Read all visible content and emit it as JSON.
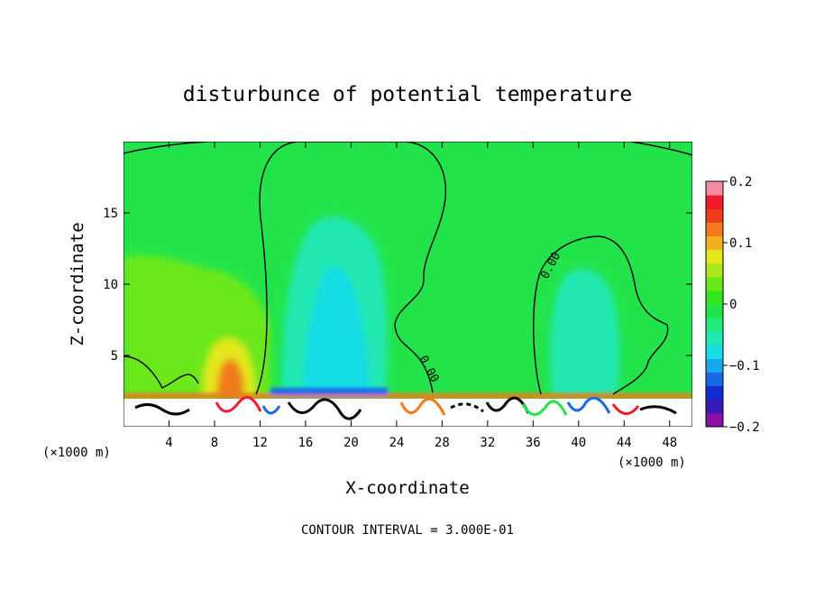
{
  "chart_data": {
    "type": "heatmap",
    "title": "disturbunce of potential temperature",
    "xlabel": "X-coordinate",
    "ylabel": "Z-coordinate",
    "x_unit": "(×1000 m)",
    "x_unit_right": "(×1000 m)",
    "xlim": [
      0,
      50
    ],
    "ylim": [
      0,
      20
    ],
    "x_ticks": [
      4,
      8,
      12,
      16,
      20,
      24,
      28,
      32,
      36,
      40,
      44,
      48
    ],
    "y_ticks": [
      5,
      10,
      15
    ],
    "colorbar": {
      "range": [
        -0.2,
        0.2
      ],
      "labels": [
        "0.2",
        "0.1",
        "0",
        "−0.1",
        "−0.2"
      ],
      "label_values": [
        0.2,
        0.1,
        0,
        -0.1,
        -0.2
      ],
      "colors": [
        "#8a0ea6",
        "#3a17b5",
        "#0f2ad0",
        "#1769e8",
        "#19a8f0",
        "#18dce6",
        "#20e8b2",
        "#22ea7c",
        "#22e44a",
        "#33e61f",
        "#6ae81c",
        "#a8e81c",
        "#e2e81a",
        "#f2b01e",
        "#f27a1a",
        "#ec3c18",
        "#f01a2c",
        "#f58aa0"
      ]
    },
    "contour_label": "0.00",
    "footer": "CONTOUR INTERVAL = 3.000E-01",
    "background_color": "#22e44a",
    "features": [
      {
        "kind": "negative-plume",
        "x_center": 17.5,
        "z_range": [
          2.5,
          14.5
        ],
        "min_value": -0.06
      },
      {
        "kind": "negative-plume",
        "x_center": 39.5,
        "z_range": [
          2.5,
          11
        ],
        "min_value": -0.04
      },
      {
        "kind": "positive-anomaly",
        "x_center": 9.5,
        "z_range": [
          2,
          7
        ],
        "max_value": 0.1
      },
      {
        "kind": "positive-layer",
        "x_range": [
          0,
          12
        ],
        "z_range": [
          4,
          12
        ],
        "max_value": 0.03
      },
      {
        "kind": "turbulent-surface-layer",
        "x_range": [
          0,
          50
        ],
        "z_range": [
          0,
          2
        ]
      }
    ]
  }
}
